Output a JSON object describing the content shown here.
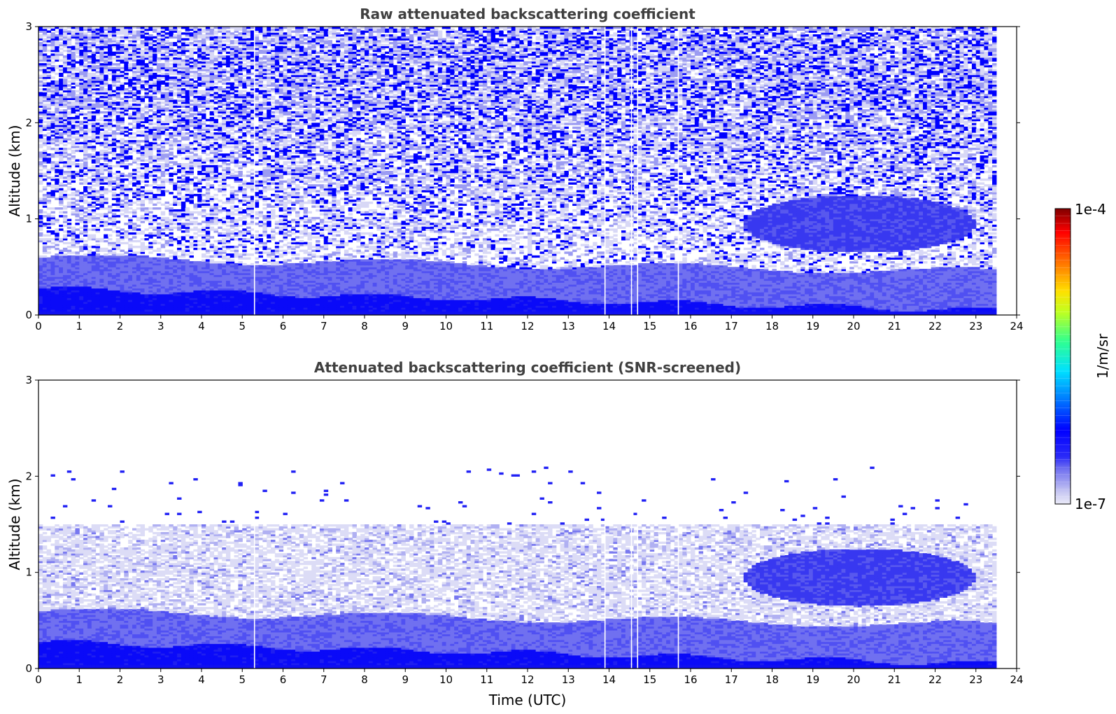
{
  "chart_data": [
    {
      "type": "heatmap",
      "title": "Raw attenuated backscattering coefficient",
      "xlabel": "",
      "ylabel": "Altitude (km)",
      "xlim": [
        0,
        24
      ],
      "ylim": [
        0,
        3
      ],
      "xticks": [
        0,
        1,
        2,
        3,
        4,
        5,
        6,
        7,
        8,
        9,
        10,
        11,
        12,
        13,
        14,
        15,
        16,
        17,
        18,
        19,
        20,
        21,
        22,
        23,
        24
      ],
      "yticks": [
        0,
        1,
        2,
        3
      ],
      "data_end_time": 23.5,
      "data_gaps_utc": [
        5.3,
        13.9,
        14.55,
        14.7,
        15.7
      ],
      "features": [
        {
          "type": "surface_layer",
          "top_km_at_start": 0.28,
          "top_km_at_end": 0.05
        },
        {
          "type": "aerosol_layer",
          "top_km_at_start": 0.6,
          "top_km_at_end": 0.45
        },
        {
          "type": "cloud",
          "time_start": 17.3,
          "time_end": 23.0,
          "base_km": 0.65,
          "top_km": 1.25
        }
      ],
      "noise_level": "high above 1.5 km"
    },
    {
      "type": "heatmap",
      "title": "Attenuated backscattering coefficient (SNR-screened)",
      "xlabel": "Time (UTC)",
      "ylabel": "Altitude (km)",
      "xlim": [
        0,
        24
      ],
      "ylim": [
        0,
        3
      ],
      "xticks": [
        0,
        1,
        2,
        3,
        4,
        5,
        6,
        7,
        8,
        9,
        10,
        11,
        12,
        13,
        14,
        15,
        16,
        17,
        18,
        19,
        20,
        21,
        22,
        23,
        24
      ],
      "yticks": [
        0,
        1,
        2,
        3
      ],
      "data_end_time": 23.5,
      "data_gaps_utc": [
        5.3,
        13.9,
        14.55,
        14.7,
        15.7
      ],
      "screened_above_km": 1.5,
      "features": [
        {
          "type": "surface_layer",
          "top_km_at_start": 0.28,
          "top_km_at_end": 0.05
        },
        {
          "type": "aerosol_layer",
          "top_km_at_start": 0.6,
          "top_km_at_end": 0.45
        },
        {
          "type": "cloud",
          "time_start": 17.3,
          "time_end": 23.0,
          "base_km": 0.65,
          "top_km": 1.25
        }
      ]
    }
  ],
  "colorbar": {
    "min_label": "1e-7",
    "max_label": "1e-4",
    "label": "1/m/sr",
    "scale": "log",
    "colormap": "jet-like (white-lavender low, blue, cyan, green, yellow, red, dark red high)"
  }
}
